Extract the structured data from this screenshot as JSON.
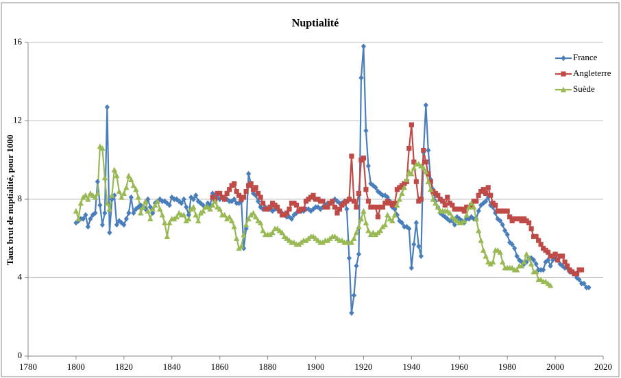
{
  "chart_data": {
    "type": "line",
    "title": "Nuptialité",
    "y_label": "Taux brut de nuptialité, pour 1000",
    "xlim": [
      1780,
      2020
    ],
    "xticks": [
      1780,
      1800,
      1820,
      1840,
      1860,
      1880,
      1900,
      1920,
      1940,
      1960,
      1980,
      2000,
      2020
    ],
    "ylim": [
      0,
      16
    ],
    "yticks": [
      0,
      4,
      8,
      12,
      16
    ],
    "grid": true,
    "legend": "top-right",
    "x": [
      1800,
      1801,
      1802,
      1803,
      1804,
      1805,
      1806,
      1807,
      1808,
      1809,
      1810,
      1811,
      1812,
      1813,
      1814,
      1815,
      1816,
      1817,
      1818,
      1819,
      1820,
      1821,
      1822,
      1823,
      1824,
      1825,
      1826,
      1827,
      1828,
      1829,
      1830,
      1831,
      1832,
      1833,
      1834,
      1835,
      1836,
      1837,
      1838,
      1839,
      1840,
      1841,
      1842,
      1843,
      1844,
      1845,
      1846,
      1847,
      1848,
      1849,
      1850,
      1851,
      1852,
      1853,
      1854,
      1855,
      1856,
      1857,
      1858,
      1859,
      1860,
      1861,
      1862,
      1863,
      1864,
      1865,
      1866,
      1867,
      1868,
      1869,
      1870,
      1871,
      1872,
      1873,
      1874,
      1875,
      1876,
      1877,
      1878,
      1879,
      1880,
      1881,
      1882,
      1883,
      1884,
      1885,
      1886,
      1887,
      1888,
      1889,
      1890,
      1891,
      1892,
      1893,
      1894,
      1895,
      1896,
      1897,
      1898,
      1899,
      1900,
      1901,
      1902,
      1903,
      1904,
      1905,
      1906,
      1907,
      1908,
      1909,
      1910,
      1911,
      1912,
      1913,
      1914,
      1915,
      1916,
      1917,
      1918,
      1919,
      1920,
      1921,
      1922,
      1923,
      1924,
      1925,
      1926,
      1927,
      1928,
      1929,
      1930,
      1931,
      1932,
      1933,
      1934,
      1935,
      1936,
      1937,
      1938,
      1939,
      1940,
      1941,
      1942,
      1943,
      1944,
      1945,
      1946,
      1947,
      1948,
      1949,
      1950,
      1951,
      1952,
      1953,
      1954,
      1955,
      1956,
      1957,
      1958,
      1959,
      1960,
      1961,
      1962,
      1963,
      1964,
      1965,
      1966,
      1967,
      1968,
      1969,
      1970,
      1971,
      1972,
      1973,
      1974,
      1975,
      1976,
      1977,
      1978,
      1979,
      1980,
      1981,
      1982,
      1983,
      1984,
      1985,
      1986,
      1987,
      1988,
      1989,
      1990,
      1991,
      1992,
      1993,
      1994,
      1995,
      1996,
      1997,
      1998,
      1999,
      2000,
      2001,
      2002,
      2003,
      2004,
      2005,
      2006,
      2007,
      2008,
      2009,
      2010,
      2011,
      2012,
      2013,
      2014
    ],
    "series": [
      {
        "name": "France",
        "color": "#4a7ebb",
        "marker": "diamond",
        "values": [
          6.8,
          6.9,
          7.0,
          7.0,
          7.2,
          6.6,
          7.0,
          7.2,
          7.3,
          8.9,
          7.7,
          6.7,
          7.3,
          12.7,
          6.3,
          8.0,
          8.2,
          6.7,
          6.9,
          6.8,
          6.7,
          7.0,
          7.3,
          8.1,
          7.3,
          7.5,
          7.6,
          7.7,
          7.6,
          7.5,
          8.0,
          7.6,
          7.3,
          7.8,
          7.9,
          8.0,
          7.9,
          7.9,
          7.8,
          7.7,
          8.1,
          8.0,
          8.0,
          7.9,
          7.8,
          8.0,
          7.6,
          7.2,
          8.1,
          8.0,
          8.2,
          7.9,
          7.8,
          7.7,
          7.6,
          7.8,
          7.7,
          8.3,
          8.2,
          8.1,
          8.0,
          8.1,
          8.0,
          8.0,
          7.9,
          7.9,
          8.0,
          7.8,
          7.8,
          7.9,
          5.5,
          6.5,
          9.3,
          8.8,
          8.3,
          8.2,
          7.9,
          7.6,
          7.5,
          7.6,
          7.5,
          7.5,
          7.4,
          7.5,
          7.5,
          7.4,
          7.3,
          7.2,
          7.1,
          7.1,
          7.0,
          7.2,
          7.3,
          7.4,
          7.4,
          7.4,
          7.5,
          7.5,
          7.4,
          7.5,
          7.6,
          7.6,
          7.5,
          7.6,
          7.7,
          7.8,
          7.8,
          7.9,
          8.0,
          7.9,
          7.8,
          7.8,
          7.9,
          7.5,
          5.0,
          2.2,
          3.1,
          4.6,
          5.2,
          14.2,
          15.8,
          11.5,
          9.7,
          8.8,
          8.7,
          8.6,
          8.4,
          8.3,
          8.2,
          8.2,
          8.1,
          7.9,
          7.6,
          7.5,
          7.2,
          6.9,
          6.8,
          6.6,
          6.6,
          6.5,
          4.5,
          5.7,
          6.8,
          5.6,
          5.1,
          10.4,
          12.8,
          10.5,
          9.0,
          8.5,
          7.9,
          7.6,
          7.3,
          7.2,
          7.1,
          7.0,
          6.9,
          6.9,
          6.7,
          7.1,
          7.0,
          6.9,
          6.8,
          7.0,
          7.0,
          7.1,
          7.0,
          7.0,
          7.4,
          7.7,
          7.8,
          7.9,
          8.1,
          7.7,
          7.6,
          7.3,
          7.0,
          6.9,
          6.7,
          6.4,
          6.2,
          5.8,
          5.7,
          5.5,
          5.1,
          4.9,
          4.8,
          4.7,
          4.8,
          5.0,
          5.0,
          4.9,
          4.7,
          4.4,
          4.4,
          4.4,
          4.8,
          4.9,
          4.6,
          4.9,
          5.0,
          4.9,
          4.7,
          4.6,
          4.5,
          4.5,
          4.3,
          4.3,
          4.2,
          4.0,
          3.9,
          3.7,
          3.7,
          3.5,
          3.5
        ]
      },
      {
        "name": "Angleterre",
        "color": "#be4b48",
        "marker": "square",
        "values": [
          null,
          null,
          null,
          null,
          null,
          null,
          null,
          null,
          null,
          null,
          null,
          null,
          null,
          null,
          null,
          null,
          null,
          null,
          null,
          null,
          null,
          null,
          null,
          null,
          null,
          null,
          null,
          null,
          null,
          null,
          null,
          null,
          null,
          null,
          null,
          null,
          null,
          null,
          null,
          null,
          null,
          null,
          null,
          null,
          null,
          null,
          null,
          null,
          null,
          null,
          null,
          null,
          null,
          null,
          null,
          null,
          null,
          8.1,
          8.0,
          8.3,
          8.3,
          8.1,
          8.0,
          8.3,
          8.5,
          8.7,
          8.8,
          8.4,
          8.2,
          8.0,
          8.1,
          8.4,
          8.7,
          8.8,
          8.5,
          8.6,
          8.3,
          8.1,
          7.8,
          7.5,
          7.5,
          7.6,
          7.8,
          7.7,
          7.6,
          7.4,
          7.2,
          7.2,
          7.3,
          7.5,
          7.8,
          7.8,
          7.7,
          7.4,
          7.5,
          7.5,
          7.9,
          8.0,
          8.1,
          8.2,
          8.0,
          8.0,
          7.9,
          7.9,
          7.6,
          7.6,
          7.8,
          7.9,
          7.6,
          7.3,
          7.5,
          7.7,
          7.8,
          7.9,
          8.0,
          10.2,
          7.9,
          7.6,
          8.3,
          10.0,
          10.1,
          8.5,
          7.9,
          7.6,
          7.6,
          7.6,
          7.1,
          7.6,
          7.6,
          7.8,
          7.9,
          7.8,
          7.7,
          7.8,
          8.5,
          8.6,
          8.7,
          8.8,
          8.9,
          10.6,
          11.8,
          9.9,
          8.9,
          7.9,
          8.0,
          10.5,
          9.9,
          9.3,
          8.9,
          8.4,
          8.3,
          8.2,
          8.0,
          7.9,
          7.7,
          8.1,
          7.8,
          7.7,
          7.5,
          7.5,
          7.5,
          7.5,
          7.4,
          7.6,
          7.6,
          7.7,
          7.9,
          7.9,
          8.2,
          8.4,
          8.5,
          8.3,
          8.6,
          8.2,
          7.8,
          7.7,
          7.4,
          7.4,
          7.4,
          7.4,
          7.4,
          7.1,
          6.9,
          7.0,
          7.0,
          7.0,
          6.9,
          7.0,
          6.9,
          6.8,
          6.5,
          6.1,
          6.1,
          5.9,
          5.7,
          5.5,
          5.4,
          5.3,
          5.1,
          5.1,
          5.2,
          4.9,
          5.1,
          5.1,
          4.8,
          4.6,
          4.4,
          4.3,
          4.2,
          4.2,
          4.4,
          4.4,
          null,
          null,
          null
        ]
      },
      {
        "name": "Suède",
        "color": "#98b954",
        "marker": "triangle",
        "values": [
          7.4,
          7.0,
          7.8,
          8.1,
          8.2,
          8.0,
          8.3,
          8.2,
          8.1,
          8.3,
          10.7,
          10.6,
          9.1,
          7.8,
          7.5,
          8.2,
          9.5,
          9.2,
          8.4,
          8.1,
          8.3,
          8.6,
          9.2,
          9.0,
          8.7,
          8.5,
          8.1,
          7.3,
          7.6,
          7.9,
          7.4,
          7.0,
          7.5,
          7.7,
          7.9,
          7.5,
          7.2,
          6.8,
          6.1,
          6.8,
          7.0,
          7.0,
          7.1,
          7.3,
          7.2,
          7.2,
          6.9,
          7.0,
          7.5,
          7.6,
          7.2,
          6.9,
          7.3,
          7.4,
          7.6,
          7.6,
          7.5,
          7.7,
          7.9,
          7.6,
          7.5,
          7.2,
          7.2,
          7.0,
          7.1,
          6.9,
          6.6,
          6.0,
          5.5,
          5.6,
          6.2,
          6.7,
          7.0,
          7.2,
          7.3,
          7.1,
          6.9,
          6.8,
          6.4,
          6.2,
          6.2,
          6.2,
          6.3,
          6.5,
          6.5,
          6.4,
          6.3,
          6.1,
          6.0,
          5.9,
          5.8,
          5.8,
          5.7,
          5.7,
          5.8,
          5.9,
          5.9,
          6.0,
          6.1,
          6.1,
          6.0,
          5.9,
          5.8,
          5.8,
          5.9,
          5.9,
          6.0,
          6.1,
          6.1,
          6.0,
          5.9,
          5.9,
          5.8,
          5.8,
          5.8,
          5.8,
          6.0,
          6.3,
          6.6,
          7.0,
          7.4,
          6.8,
          6.4,
          6.2,
          6.3,
          6.2,
          6.3,
          6.4,
          6.6,
          6.7,
          7.2,
          7.0,
          6.9,
          7.2,
          7.7,
          8.0,
          8.3,
          8.6,
          9.0,
          9.4,
          9.3,
          9.6,
          9.8,
          9.8,
          9.7,
          9.6,
          9.4,
          8.9,
          8.5,
          8.0,
          7.8,
          7.6,
          7.4,
          7.4,
          7.4,
          7.4,
          7.3,
          7.1,
          7.0,
          6.9,
          6.8,
          6.8,
          6.9,
          7.2,
          7.6,
          7.8,
          7.6,
          7.0,
          6.4,
          5.9,
          5.4,
          5.1,
          4.8,
          4.7,
          4.8,
          5.4,
          5.4,
          5.3,
          4.8,
          4.5,
          4.5,
          4.5,
          4.5,
          4.4,
          4.4,
          4.6,
          4.6,
          4.8,
          5.2,
          5.0,
          4.7,
          4.3,
          4.3,
          3.9,
          3.9,
          3.8,
          3.8,
          3.7,
          3.6,
          null,
          null,
          null,
          null,
          null,
          null,
          null,
          null,
          null,
          null,
          null,
          null,
          null,
          null,
          null,
          null
        ]
      }
    ]
  }
}
